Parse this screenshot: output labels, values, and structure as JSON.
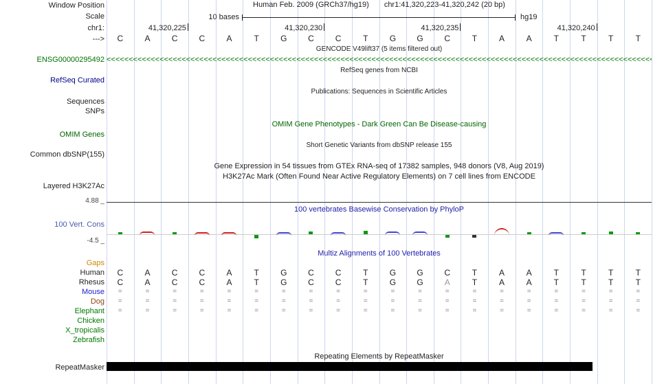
{
  "colors": {
    "gridline": "#ccd6ee",
    "gencode_green": "#007200",
    "refseq_blue": "#000088",
    "omim_green": "#006400",
    "title_blue": "#2222aa",
    "vertcons_blue": "#4a5aaa",
    "gaps_orange": "#cc8800",
    "mouse_blue": "#2222cc",
    "dog_brown": "#8b4513",
    "species_green": "#007800",
    "muted_base": "#999999",
    "base_color": "#222222",
    "eq_color": "#888888"
  },
  "header": {
    "window_position_label": "Window Position",
    "assembly_title": "Human Feb. 2009 (GRCh37/hg19)",
    "position_range": "chr1:41,320,223-41,320,242 (20 bp)",
    "scale_label": "Scale",
    "scale_value": "10 bases",
    "assembly_short": "hg19",
    "chrom_label": "chr1:",
    "strand_arrow": "--->",
    "position_ticks": [
      {
        "label": "41,320,225",
        "after_base": 3
      },
      {
        "label": "41,320,230",
        "after_base": 8
      },
      {
        "label": "41,320,235",
        "after_base": 13
      },
      {
        "label": "41,320,240",
        "after_base": 18
      }
    ]
  },
  "sequence": {
    "bases": [
      "C",
      "A",
      "C",
      "C",
      "A",
      "T",
      "G",
      "C",
      "C",
      "T",
      "G",
      "G",
      "C",
      "T",
      "A",
      "A",
      "T",
      "T",
      "T",
      "T"
    ]
  },
  "tracks": {
    "gencode": {
      "title": "GENCODE V49lift37 (5 items filtered out)",
      "gene_id": "ENSG00000295492",
      "arrow_char": "<",
      "arrow_count": 160
    },
    "refseq": {
      "center_label": "RefSeq genes from NCBI",
      "left_label": "RefSeq Curated"
    },
    "publications": {
      "center_label": "Publications: Sequences in Scientific Articles",
      "left_label_sequences": "Sequences",
      "left_label_snps": "SNPs"
    },
    "omim": {
      "center_label": "OMIM Gene Phenotypes - Dark Green Can Be Disease-causing",
      "left_label": "OMIM Genes"
    },
    "dbsnp": {
      "center_label": "Short Genetic Variants from dbSNP release 155",
      "left_label": "Common dbSNP(155)"
    },
    "gtex": {
      "center_label": "Gene Expression in 54 tissues from GTEx RNA-seq of 17382 samples, 948 donors (V8, Aug 2019)"
    },
    "h3k27ac": {
      "center_label": "H3K27Ac Mark (Often Found Near Active Regulatory Elements) on 7 cell lines from ENCODE",
      "left_label": "Layered H3K27Ac"
    },
    "conservation": {
      "center_label": "100 vertebrates Basewise Conservation by PhyloP",
      "left_label": "100 Vert. Cons",
      "max_label": "4.88 _",
      "min_label": "-4.5 _",
      "marks": [
        {
          "color": "#119811",
          "h": 3
        },
        {
          "color": "#cc2222",
          "h": 4,
          "arc": true
        },
        {
          "color": "#119811",
          "h": 3
        },
        {
          "color": "#cc2222",
          "h": 3,
          "arc": true
        },
        {
          "color": "#cc2222",
          "h": 3,
          "arc": true
        },
        {
          "color": "#119811",
          "h": 5,
          "below": true
        },
        {
          "color": "#4444cc",
          "h": 3,
          "arc": true
        },
        {
          "color": "#119811",
          "h": 4
        },
        {
          "color": "#4444cc",
          "h": 3,
          "arc": true
        },
        {
          "color": "#119811",
          "h": 5
        },
        {
          "color": "#4444cc",
          "h": 4,
          "arc": true
        },
        {
          "color": "#4444cc",
          "h": 4,
          "arc": true
        },
        {
          "color": "#119811",
          "h": 4,
          "below": true
        },
        {
          "color": "#333333",
          "h": 4,
          "below": true
        },
        {
          "color": "#cc2222",
          "h": 9,
          "arc": true
        },
        {
          "color": "#119811",
          "h": 3
        },
        {
          "color": "#4444cc",
          "h": 3,
          "arc": true
        },
        {
          "color": "#119811",
          "h": 3
        },
        {
          "color": "#119811",
          "h": 4
        },
        {
          "color": "#119811",
          "h": 3
        }
      ]
    },
    "multiz": {
      "center_label": "Multiz Alignments of 100 Vertebrates",
      "rows": [
        {
          "label": "Gaps",
          "color": "#cc8800",
          "cells": []
        },
        {
          "label": "Human",
          "color": "#222222",
          "cell_color": "#222222",
          "cells": [
            "C",
            "A",
            "C",
            "C",
            "A",
            "T",
            "G",
            "C",
            "C",
            "T",
            "G",
            "G",
            "C",
            "T",
            "A",
            "A",
            "T",
            "T",
            "T",
            "T"
          ]
        },
        {
          "label": "Rhesus",
          "color": "#222222",
          "cell_color": "#222222",
          "muted_index": 12,
          "cells": [
            "C",
            "A",
            "C",
            "C",
            "A",
            "T",
            "G",
            "C",
            "C",
            "T",
            "G",
            "G",
            "A",
            "T",
            "A",
            "A",
            "T",
            "T",
            "T",
            "T"
          ]
        },
        {
          "label": "Mouse",
          "color": "#2222cc",
          "cell_color": "#888888",
          "cells": [
            "=",
            "=",
            "=",
            "=",
            "=",
            "=",
            "=",
            "=",
            "=",
            "=",
            "=",
            "=",
            "=",
            "=",
            "=",
            "=",
            "=",
            "=",
            "=",
            "="
          ]
        },
        {
          "label": "Dog",
          "color": "#8b4513",
          "cell_color": "#888888",
          "cells": [
            "=",
            "=",
            "=",
            "=",
            "=",
            "=",
            "=",
            "=",
            "=",
            "=",
            "=",
            "=",
            "=",
            "=",
            "=",
            "=",
            "=",
            "=",
            "=",
            "="
          ]
        },
        {
          "label": "Elephant",
          "color": "#007800",
          "cell_color": "#888888",
          "cells": [
            "=",
            "=",
            "=",
            "=",
            "=",
            "=",
            "=",
            "=",
            "=",
            "=",
            "=",
            "=",
            "=",
            "=",
            "=",
            "=",
            "=",
            "=",
            "=",
            "="
          ]
        },
        {
          "label": "Chicken",
          "color": "#007800",
          "cells": []
        },
        {
          "label": "X_tropicalis",
          "color": "#007800",
          "cells": []
        },
        {
          "label": "Zebrafish",
          "color": "#007800",
          "cells": []
        }
      ]
    },
    "repeatmasker": {
      "center_label": "Repeating Elements by RepeatMasker",
      "left_label": "RepeatMasker"
    }
  }
}
